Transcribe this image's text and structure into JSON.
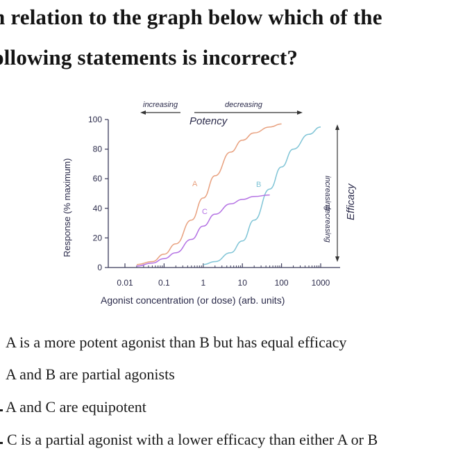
{
  "question": {
    "line1": "n relation to the graph below which of the",
    "line2": "ollowing statements is incorrect?"
  },
  "figure": {
    "top_left_arrow_label": "increasing",
    "top_right_arrow_label": "decreasing",
    "potency_label": "Potency",
    "right_top_label": "increasing",
    "right_bottom_label": "decreasing",
    "efficacy_label": "Efficacy",
    "curve_labels": [
      "A",
      "B",
      "C"
    ],
    "colors": {
      "curve_a": "#e8a07e",
      "curve_b": "#7fc4d6",
      "curve_c": "#b370e3",
      "axes": "#3a3a5a",
      "text": "#2a2a4a"
    }
  },
  "chart_data": {
    "type": "line",
    "title": "",
    "xlabel": "Agonist concentration (or dose) (arb. units)",
    "ylabel": "Response (% maximum)",
    "x_scale": "log",
    "xlim": [
      0.01,
      1000
    ],
    "ylim": [
      0,
      100
    ],
    "x_ticks": [
      "0.01",
      "0.1",
      "1",
      "10",
      "100",
      "1000"
    ],
    "y_ticks": [
      "0",
      "20",
      "40",
      "60",
      "80",
      "100"
    ],
    "grid": false,
    "series": [
      {
        "name": "A",
        "x": [
          0.02,
          0.05,
          0.1,
          0.2,
          0.5,
          1,
          2,
          5,
          10,
          20,
          50,
          100
        ],
        "y": [
          2,
          4,
          9,
          16,
          32,
          47,
          62,
          78,
          86,
          91,
          95,
          97
        ]
      },
      {
        "name": "B",
        "x": [
          1,
          2,
          5,
          10,
          20,
          50,
          100,
          200,
          500,
          1000
        ],
        "y": [
          2,
          4,
          10,
          18,
          32,
          53,
          68,
          80,
          90,
          95
        ]
      },
      {
        "name": "C",
        "x": [
          0.02,
          0.05,
          0.1,
          0.2,
          0.5,
          1,
          2,
          5,
          10,
          20,
          50
        ],
        "y": [
          1,
          3,
          6,
          10,
          19,
          28,
          36,
          43,
          46,
          48,
          49
        ]
      }
    ]
  },
  "options": [
    "A is a more potent agonist than B but has equal efficacy",
    "A and B are partial agonists",
    "A and C are equipotent",
    "C is a partial agonist with a lower efficacy than either A or B"
  ]
}
